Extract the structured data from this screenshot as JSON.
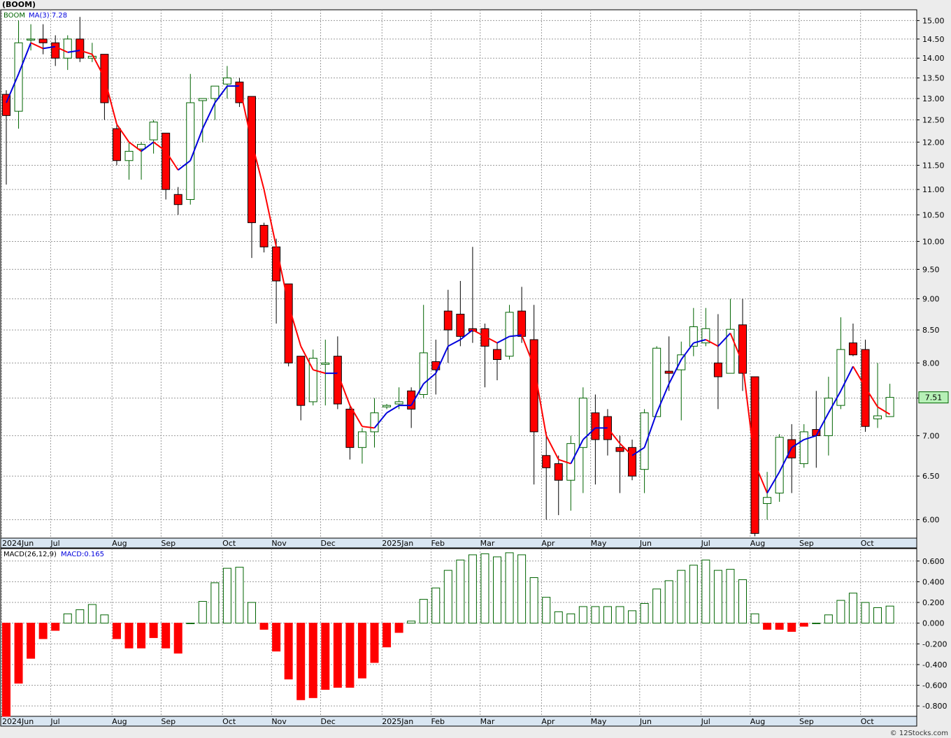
{
  "header": {
    "ticker": "(BOOM)",
    "credit": "© 12Stocks.com"
  },
  "price_panel": {
    "legend_symbol": "BOOM",
    "legend_ma": "MA(3)",
    "legend_ma_value": "7.28",
    "last_price_label": "7.51",
    "y_ticks": [
      6.0,
      6.5,
      7.0,
      7.5,
      8.0,
      8.5,
      9.0,
      9.5,
      10.0,
      10.5,
      11.0,
      11.5,
      12.0,
      12.5,
      13.0,
      13.5,
      14.0,
      14.5,
      15.0
    ]
  },
  "macd_panel": {
    "legend_label": "MACD(26,12,9)",
    "legend_value": "MACD:0.165",
    "y_ticks": [
      -0.8,
      -0.6,
      -0.4,
      -0.2,
      0.0,
      0.2,
      0.4,
      0.6
    ]
  },
  "x_labels": [
    {
      "label": "2024Jun",
      "week": 0
    },
    {
      "label": "Jul",
      "week": 4
    },
    {
      "label": "Aug",
      "week": 9
    },
    {
      "label": "Sep",
      "week": 13
    },
    {
      "label": "Oct",
      "week": 18
    },
    {
      "label": "Nov",
      "week": 22
    },
    {
      "label": "Dec",
      "week": 26
    },
    {
      "label": "2025Jan",
      "week": 31
    },
    {
      "label": "Feb",
      "week": 35
    },
    {
      "label": "Mar",
      "week": 39
    },
    {
      "label": "Apr",
      "week": 44
    },
    {
      "label": "May",
      "week": 48
    },
    {
      "label": "Jun",
      "week": 52
    },
    {
      "label": "Jul",
      "week": 57
    },
    {
      "label": "Aug",
      "week": 61
    },
    {
      "label": "Sep",
      "week": 65
    },
    {
      "label": "Oct",
      "week": 70
    }
  ],
  "colors": {
    "up": "#006400",
    "down": "#ff0000",
    "ma_up": "#0000dd",
    "ma_down": "#ff0000",
    "grid": "#9a9a9a",
    "plot_bg": "#ffffff"
  },
  "chart_data": [
    {
      "type": "candlestick",
      "weeks": 73,
      "ylim": [
        5.8,
        15.3
      ],
      "y_scale": "log",
      "ohlc": [
        [
          13.1,
          13.2,
          11.1,
          12.6
        ],
        [
          12.7,
          15.0,
          12.3,
          14.4
        ],
        [
          14.5,
          14.9,
          14.2,
          14.5
        ],
        [
          14.5,
          14.9,
          14.1,
          14.4
        ],
        [
          14.4,
          14.6,
          13.8,
          14.0
        ],
        [
          14.0,
          14.6,
          13.7,
          14.5
        ],
        [
          14.5,
          15.1,
          13.9,
          14.0
        ],
        [
          14.0,
          14.4,
          13.9,
          14.05
        ],
        [
          14.1,
          14.1,
          12.5,
          12.9
        ],
        [
          12.3,
          12.4,
          11.5,
          11.6
        ],
        [
          11.6,
          12.0,
          11.2,
          11.8
        ],
        [
          11.85,
          12.0,
          11.2,
          11.95
        ],
        [
          12.05,
          12.5,
          11.75,
          12.45
        ],
        [
          12.2,
          12.2,
          10.8,
          11.0
        ],
        [
          10.9,
          11.05,
          10.5,
          10.7
        ],
        [
          10.8,
          13.6,
          10.7,
          12.9
        ],
        [
          12.95,
          13.0,
          12.0,
          13.0
        ],
        [
          13.0,
          13.3,
          12.5,
          13.3
        ],
        [
          13.35,
          13.8,
          13.0,
          13.5
        ],
        [
          13.4,
          13.5,
          12.8,
          12.9
        ],
        [
          13.05,
          13.05,
          9.7,
          10.35
        ],
        [
          10.3,
          10.35,
          9.8,
          9.9
        ],
        [
          9.9,
          10.05,
          8.6,
          9.3
        ],
        [
          9.25,
          9.25,
          7.95,
          8.0
        ],
        [
          8.1,
          8.1,
          7.2,
          7.4
        ],
        [
          7.45,
          8.2,
          7.4,
          8.07
        ],
        [
          7.98,
          8.35,
          7.4,
          8.0
        ],
        [
          8.1,
          8.4,
          7.35,
          7.42
        ],
        [
          7.35,
          7.4,
          6.7,
          6.85
        ],
        [
          6.85,
          7.1,
          6.65,
          7.05
        ],
        [
          7.05,
          7.5,
          6.85,
          7.3
        ],
        [
          7.38,
          7.42,
          7.35,
          7.4
        ],
        [
          7.42,
          7.65,
          7.35,
          7.45
        ],
        [
          7.6,
          7.65,
          7.1,
          7.35
        ],
        [
          7.55,
          8.9,
          7.5,
          8.15
        ],
        [
          8.02,
          8.35,
          7.55,
          7.9
        ],
        [
          8.8,
          9.15,
          8.0,
          8.5
        ],
        [
          8.75,
          9.3,
          8.25,
          8.4
        ],
        [
          8.52,
          9.9,
          8.3,
          8.48
        ],
        [
          8.52,
          8.6,
          7.65,
          8.25
        ],
        [
          8.2,
          8.3,
          7.75,
          8.05
        ],
        [
          8.1,
          8.9,
          8.05,
          8.78
        ],
        [
          8.8,
          9.2,
          8.3,
          8.4
        ],
        [
          8.35,
          8.9,
          6.4,
          7.05
        ],
        [
          6.75,
          7.05,
          6.0,
          6.6
        ],
        [
          6.65,
          6.75,
          6.05,
          6.45
        ],
        [
          6.45,
          7.0,
          6.1,
          6.9
        ],
        [
          6.85,
          7.65,
          6.3,
          7.5
        ],
        [
          7.3,
          7.55,
          6.4,
          6.95
        ],
        [
          7.25,
          7.35,
          6.75,
          6.95
        ],
        [
          6.85,
          7.0,
          6.3,
          6.8
        ],
        [
          6.85,
          6.95,
          6.45,
          6.5
        ],
        [
          6.58,
          7.35,
          6.3,
          7.3
        ],
        [
          7.25,
          8.25,
          7.25,
          8.22
        ],
        [
          7.88,
          8.4,
          7.6,
          7.85
        ],
        [
          7.9,
          8.32,
          7.2,
          8.12
        ],
        [
          8.25,
          8.85,
          8.1,
          8.55
        ],
        [
          8.3,
          8.85,
          8.25,
          8.52
        ],
        [
          8.0,
          8.75,
          7.35,
          7.8
        ],
        [
          7.85,
          9.0,
          7.85,
          8.51
        ],
        [
          8.58,
          9.0,
          7.6,
          7.85
        ],
        [
          7.8,
          7.8,
          5.82,
          5.85
        ],
        [
          6.18,
          6.55,
          6.0,
          6.25
        ],
        [
          6.3,
          7.02,
          6.2,
          6.98
        ],
        [
          6.95,
          7.15,
          6.3,
          6.72
        ],
        [
          6.65,
          7.15,
          6.6,
          7.05
        ],
        [
          7.08,
          7.6,
          6.6,
          7.0
        ],
        [
          7.0,
          7.8,
          6.75,
          7.5
        ],
        [
          7.4,
          8.7,
          7.35,
          8.2
        ],
        [
          8.3,
          8.6,
          8.1,
          8.12
        ],
        [
          8.2,
          8.35,
          7.05,
          7.12
        ],
        [
          7.22,
          8.0,
          7.1,
          7.26
        ],
        [
          7.25,
          7.7,
          7.25,
          7.51
        ]
      ],
      "ma3": [
        12.9,
        13.6,
        14.4,
        14.25,
        14.3,
        14.15,
        14.2,
        14.1,
        13.5,
        12.4,
        12.0,
        11.8,
        12.0,
        11.8,
        11.4,
        11.6,
        12.3,
        12.9,
        13.3,
        13.3,
        12.0,
        11.0,
        9.9,
        8.9,
        8.25,
        7.9,
        7.85,
        7.85,
        7.4,
        7.12,
        7.1,
        7.3,
        7.4,
        7.4,
        7.7,
        7.85,
        8.25,
        8.35,
        8.5,
        8.4,
        8.3,
        8.4,
        8.42,
        7.95,
        7.0,
        6.7,
        6.65,
        6.95,
        7.1,
        7.1,
        6.9,
        6.75,
        6.85,
        7.3,
        7.7,
        8.05,
        8.3,
        8.35,
        8.25,
        8.45,
        8.0,
        6.65,
        6.3,
        6.55,
        6.85,
        6.95,
        7.0,
        7.3,
        7.6,
        7.95,
        7.65,
        7.38,
        7.28
      ]
    },
    {
      "type": "bar",
      "name": "MACD histogram",
      "ylim": [
        -0.9,
        0.72
      ],
      "values": [
        -0.9,
        -0.58,
        -0.34,
        -0.15,
        -0.07,
        0.09,
        0.13,
        0.18,
        0.08,
        -0.15,
        -0.24,
        -0.24,
        -0.14,
        -0.24,
        -0.29,
        0.0,
        0.21,
        0.39,
        0.53,
        0.54,
        0.2,
        -0.06,
        -0.27,
        -0.54,
        -0.74,
        -0.72,
        -0.64,
        -0.62,
        -0.62,
        -0.53,
        -0.38,
        -0.23,
        -0.09,
        0.02,
        0.23,
        0.34,
        0.51,
        0.61,
        0.66,
        0.67,
        0.64,
        0.68,
        0.66,
        0.44,
        0.25,
        0.11,
        0.09,
        0.16,
        0.16,
        0.16,
        0.16,
        0.12,
        0.19,
        0.33,
        0.41,
        0.51,
        0.56,
        0.61,
        0.51,
        0.52,
        0.42,
        0.09,
        -0.06,
        -0.06,
        -0.08,
        -0.03,
        0.0,
        0.08,
        0.22,
        0.29,
        0.2,
        0.15,
        0.165
      ]
    }
  ]
}
